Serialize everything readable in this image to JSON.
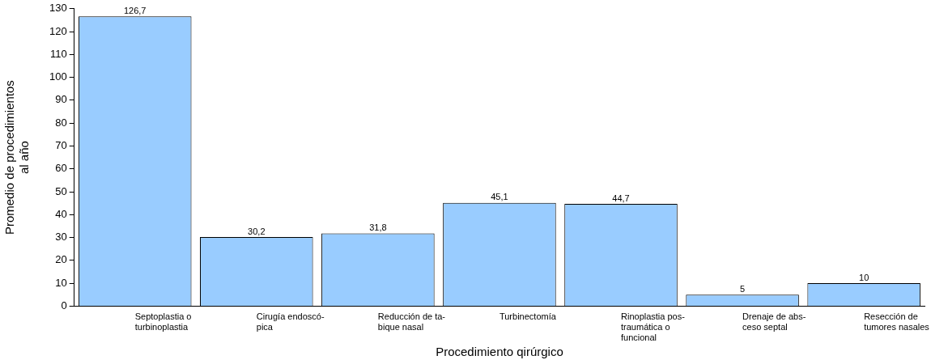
{
  "chart_data": {
    "type": "bar",
    "xlabel": "Procedimiento qirúrgico",
    "ylabel": "Promedio de procedimientos\nal año",
    "categories": [
      "Septoplastia o\nturbinoplastia",
      "Cirugía endoscó-\npica",
      "Reducción de ta-\nbique nasal",
      "Turbinectomía",
      "Rinoplastia pos-\ntraumática o\nfuncional",
      "Drenaje de abs-\nceso septal",
      "Resección de\ntumores nasales"
    ],
    "values": [
      126.7,
      30.2,
      31.8,
      45.1,
      44.7,
      5,
      10
    ],
    "value_labels": [
      "126,7",
      "30,2",
      "31,8",
      "45,1",
      "44,7",
      "5",
      "10"
    ],
    "color": "#99ccff",
    "ylim": [
      0,
      130
    ],
    "yticks": [
      0,
      10,
      20,
      30,
      40,
      50,
      60,
      70,
      80,
      90,
      100,
      110,
      120,
      130
    ],
    "grid": false,
    "legend": false
  }
}
